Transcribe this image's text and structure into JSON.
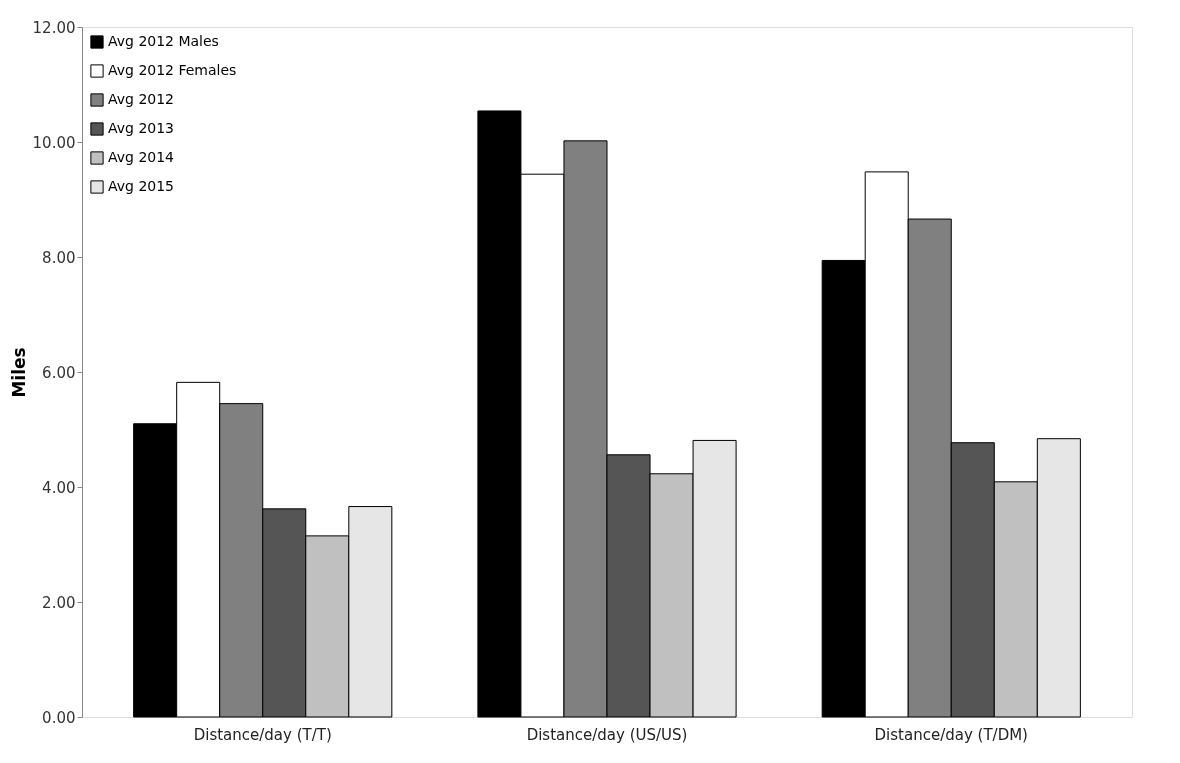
{
  "chart_data": {
    "type": "bar",
    "ylabel": "Miles",
    "categories": [
      "Distance/day (T/T)",
      "Distance/day (US/US)",
      "Distance/day (T/DM)"
    ],
    "series": [
      {
        "name": "Avg 2012 Males",
        "color": "#000000",
        "values": [
          5.1,
          10.54,
          7.94
        ]
      },
      {
        "name": "Avg 2012 Females",
        "color": "#ffffff",
        "values": [
          5.82,
          9.44,
          9.48
        ]
      },
      {
        "name": "Avg 2012",
        "color": "#808080",
        "values": [
          5.45,
          10.02,
          8.66
        ]
      },
      {
        "name": "Avg 2013",
        "color": "#555555",
        "values": [
          3.62,
          4.56,
          4.77
        ]
      },
      {
        "name": "Avg 2014",
        "color": "#c0c0c0",
        "values": [
          3.15,
          4.23,
          4.09
        ]
      },
      {
        "name": "Avg 2015",
        "color": "#e6e6e6",
        "values": [
          3.66,
          4.81,
          4.84
        ]
      }
    ],
    "ylim": [
      0,
      12
    ],
    "yticks": [
      {
        "value": 0,
        "label": "0.00"
      },
      {
        "value": 2,
        "label": "2.00"
      },
      {
        "value": 4,
        "label": "4.00"
      },
      {
        "value": 6,
        "label": "6.00"
      },
      {
        "value": 8,
        "label": "8.00"
      },
      {
        "value": 10,
        "label": "10.00"
      },
      {
        "value": 12,
        "label": "12.00"
      }
    ],
    "grid": false,
    "legend": "top left"
  }
}
